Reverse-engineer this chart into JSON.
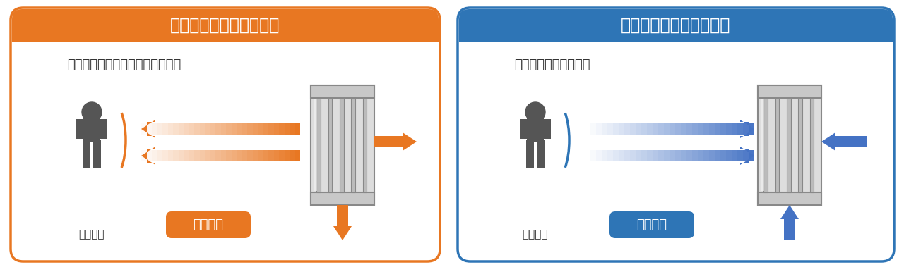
{
  "left_panel": {
    "title": "輿射イメージ　（暖房）",
    "subtitle": "遠赤外線を高速でモノや人に伝播",
    "label_bottom": "（例）人",
    "badge_text": "遠赤外線",
    "border_color": "#E87722",
    "header_color": "#E87722",
    "arrow_color": "#E87722",
    "badge_color": "#E87722"
  },
  "right_panel": {
    "title": "輿射イメージ　（冷房）",
    "subtitle": "人や物の輿射熱を吸熱",
    "label_bottom": "（例）人",
    "badge_text": "遠赤外線",
    "border_color": "#2E75B6",
    "header_color": "#2E75B6",
    "arrow_color": "#4472C4",
    "badge_color": "#2E75B6"
  },
  "bg_color": "#FFFFFF",
  "figure_bg": "#FFFFFF"
}
